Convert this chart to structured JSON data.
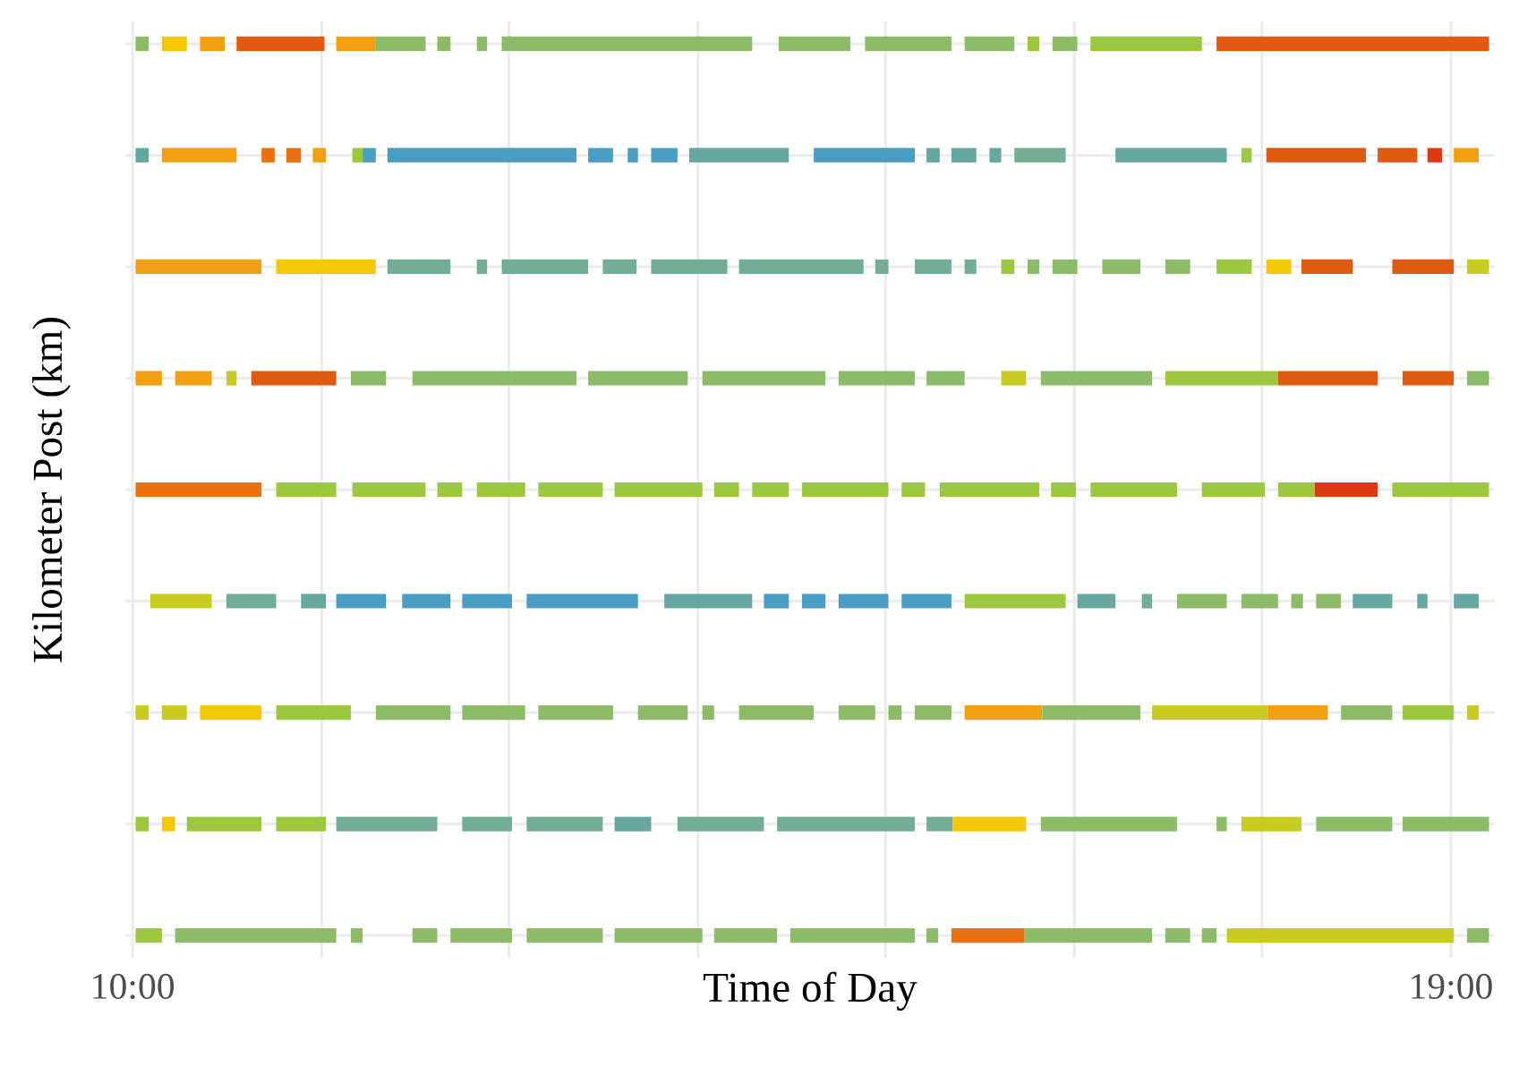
{
  "chart_data": {
    "type": "bar",
    "orientation": "horizontal",
    "xlabel": "Time of Day",
    "ylabel": "Kilometer Post (km)",
    "categories": [
      null,
      null,
      null,
      null,
      null,
      null,
      null,
      null,
      null
    ],
    "xlim": [
      9.95,
      19.3
    ],
    "xticks": [
      {
        "value": 10,
        "label": "10:00"
      },
      {
        "value": 11.29,
        "label": null
      },
      {
        "value": 12.57,
        "label": null
      },
      {
        "value": 13.86,
        "label": null
      },
      {
        "value": 15.14,
        "label": null
      },
      {
        "value": 16.43,
        "label": null
      },
      {
        "value": 17.71,
        "label": null
      },
      {
        "value": 19,
        "label": "19:00"
      }
    ],
    "tick_labels": "x",
    "grid": true,
    "series": [
      {
        "base": [
          10.02,
          10.02,
          10.02,
          10.02,
          10.02,
          10.12,
          10.02,
          10.02,
          10.02
        ],
        "values": [
          0.09,
          0.09,
          0.86,
          0.18,
          0.86,
          0.42,
          0.09,
          0.09,
          0.18
        ],
        "colors": [
          "#8cbc68",
          "#66a8a0",
          "#f0a010",
          "#f0a010",
          "#ea7010",
          "#c8cc20",
          "#c8cc20",
          "#9cc840",
          "#9cc840"
        ]
      },
      {
        "base": [
          10.2,
          10.2,
          10.98,
          10.29,
          10.98,
          10.64,
          10.2,
          10.2,
          10.29
        ],
        "values": [
          0.17,
          0.51,
          0.68,
          0.25,
          0.41,
          0.34,
          0.17,
          0.09,
          1.1
        ],
        "colors": [
          "#f2c800",
          "#f0a010",
          "#f2c800",
          "#f0a010",
          "#9cc840",
          "#72ae94",
          "#c8cc20",
          "#f2c800",
          "#8cbc68"
        ]
      },
      {
        "base": [
          10.46,
          10.88,
          11.74,
          10.64,
          11.5,
          11.15,
          10.46,
          10.37,
          11.49
        ],
        "values": [
          0.17,
          0.09,
          0.43,
          0.07,
          0.5,
          0.17,
          0.42,
          0.51,
          0.08
        ],
        "colors": [
          "#f0a010",
          "#ea7010",
          "#72ae94",
          "#c8cc20",
          "#9cc840",
          "#66a8a0",
          "#f2c800",
          "#9cc840",
          "#8cbc68"
        ]
      },
      {
        "base": [
          10.71,
          11.05,
          12.35,
          10.81,
          12.08,
          11.39,
          10.98,
          10.98,
          11.91
        ],
        "values": [
          0.6,
          0.1,
          0.07,
          0.58,
          0.17,
          0.34,
          0.51,
          0.34,
          0.17
        ],
        "colors": [
          "#e05a10",
          "#ea7010",
          "#72ae94",
          "#e05a10",
          "#9cc840",
          "#4a9ec4",
          "#9cc840",
          "#9cc840",
          "#8cbc68"
        ]
      },
      {
        "base": [
          11.39,
          11.23,
          12.52,
          11.49,
          12.35,
          11.84,
          11.66,
          11.39,
          12.17
        ],
        "values": [
          0.27,
          0.09,
          0.59,
          0.24,
          0.33,
          0.33,
          0.51,
          0.69,
          0.42
        ],
        "colors": [
          "#f0a010",
          "#f0a010",
          "#72ae94",
          "#8cbc68",
          "#9cc840",
          "#4a9ec4",
          "#8cbc68",
          "#72ae94",
          "#8cbc68"
        ]
      },
      {
        "base": [
          11.66,
          11.5,
          13.21,
          11.91,
          12.77,
          12.25,
          12.25,
          12.25,
          12.69
        ],
        "values": [
          0.34,
          0.07,
          0.23,
          1.12,
          0.44,
          0.34,
          0.43,
          0.34,
          0.52
        ],
        "colors": [
          "#8cbc68",
          "#9cc840",
          "#72ae94",
          "#8cbc68",
          "#9cc840",
          "#4a9ec4",
          "#8cbc68",
          "#72ae94",
          "#8cbc68"
        ]
      },
      {
        "base": [
          12.08,
          11.57,
          13.54,
          13.11,
          13.29,
          12.69,
          12.77,
          12.69,
          13.29
        ],
        "values": [
          0.09,
          0.09,
          0.52,
          0.68,
          0.6,
          0.76,
          0.51,
          0.52,
          0.6
        ],
        "colors": [
          "#8cbc68",
          "#4a9ec4",
          "#72ae94",
          "#8cbc68",
          "#9cc840",
          "#4a9ec4",
          "#8cbc68",
          "#72ae94",
          "#8cbc68"
        ]
      },
      {
        "base": [
          12.35,
          11.74,
          14.14,
          13.89,
          13.97,
          13.63,
          13.45,
          13.29,
          13.97
        ],
        "values": [
          0.07,
          1.29,
          0.85,
          0.84,
          0.17,
          0.6,
          0.34,
          0.25,
          0.43
        ],
        "colors": [
          "#8cbc68",
          "#4a9ec4",
          "#72ae94",
          "#8cbc68",
          "#9cc840",
          "#66a8a0",
          "#8cbc68",
          "#66a8a0",
          "#8cbc68"
        ]
      },
      {
        "base": [
          12.52,
          13.11,
          15.07,
          14.82,
          14.23,
          14.31,
          13.89,
          13.72,
          14.49
        ],
        "values": [
          1.71,
          0.17,
          0.09,
          0.52,
          0.25,
          0.17,
          0.08,
          0.59,
          0.85
        ],
        "colors": [
          "#8cbc68",
          "#4a9ec4",
          "#72ae94",
          "#8cbc68",
          "#9cc840",
          "#4a9ec4",
          "#8cbc68",
          "#72ae94",
          "#8cbc68"
        ]
      },
      {
        "base": [
          14.41,
          13.38,
          15.34,
          15.42,
          14.57,
          14.57,
          14.14,
          14.4,
          15.42
        ],
        "values": [
          0.49,
          0.07,
          0.25,
          0.26,
          0.59,
          0.16,
          0.51,
          0.94,
          0.08
        ],
        "colors": [
          "#8cbc68",
          "#4a9ec4",
          "#72ae94",
          "#8cbc68",
          "#9cc840",
          "#4a9ec4",
          "#8cbc68",
          "#72ae94",
          "#8cbc68"
        ]
      },
      {
        "base": [
          15.0,
          13.54,
          15.68,
          15.93,
          15.25,
          14.82,
          14.82,
          15.42,
          15.59
        ],
        "values": [
          0.59,
          0.18,
          0.08,
          0.17,
          0.16,
          0.34,
          0.25,
          0.18,
          0.5
        ],
        "colors": [
          "#8cbc68",
          "#4a9ec4",
          "#72ae94",
          "#c8cc20",
          "#9cc840",
          "#4a9ec4",
          "#8cbc68",
          "#72ae94",
          "#ea7010"
        ]
      },
      {
        "base": [
          15.68,
          13.8,
          15.93,
          16.2,
          15.51,
          15.25,
          15.16,
          15.6,
          16.09
        ],
        "values": [
          0.34,
          0.68,
          0.09,
          0.76,
          0.68,
          0.34,
          0.09,
          0.5,
          0.87
        ],
        "colors": [
          "#8cbc68",
          "#66a8a0",
          "#9cc840",
          "#8cbc68",
          "#9cc840",
          "#4a9ec4",
          "#8cbc68",
          "#f2c800",
          "#8cbc68"
        ]
      },
      {
        "base": [
          16.11,
          14.65,
          16.11,
          17.05,
          16.27,
          15.68,
          15.34,
          16.2,
          17.05
        ],
        "values": [
          0.08,
          0.69,
          0.08,
          0.77,
          0.17,
          0.69,
          0.25,
          0.93,
          0.17
        ],
        "colors": [
          "#9cc840",
          "#4a9ec4",
          "#8cbc68",
          "#9cc840",
          "#9cc840",
          "#9cc840",
          "#8cbc68",
          "#8cbc68",
          "#8cbc68"
        ]
      },
      {
        "base": [
          16.28,
          15.42,
          16.28,
          17.82,
          16.54,
          16.45,
          15.68,
          17.4,
          17.3
        ],
        "values": [
          0.17,
          0.09,
          0.17,
          0.68,
          0.59,
          0.26,
          0.53,
          0.07,
          0.1
        ],
        "colors": [
          "#8cbc68",
          "#66a8a0",
          "#8cbc68",
          "#e05a10",
          "#9cc840",
          "#66a8a0",
          "#f0a010",
          "#8cbc68",
          "#8cbc68"
        ]
      },
      {
        "base": [
          16.54,
          15.59,
          16.62,
          18.67,
          17.3,
          16.89,
          16.21,
          17.57,
          17.47
        ],
        "values": [
          0.76,
          0.17,
          0.26,
          0.35,
          0.43,
          0.07,
          0.67,
          0.41,
          1.55
        ],
        "colors": [
          "#9cc840",
          "#66a8a0",
          "#8cbc68",
          "#e05a10",
          "#9cc840",
          "#72ae94",
          "#8cbc68",
          "#c8cc20",
          "#c8cc20"
        ]
      },
      {
        "base": [
          17.4,
          15.85,
          17.05,
          19.11,
          17.82,
          17.13,
          16.96,
          18.08,
          19.11
        ],
        "values": [
          1.86,
          0.08,
          0.17,
          0.15,
          0.25,
          0.34,
          0.79,
          0.52,
          0.15
        ],
        "colors": [
          "#e05a10",
          "#66a8a0",
          "#8cbc68",
          "#8cbc68",
          "#9cc840",
          "#8cbc68",
          "#c8cc20",
          "#8cbc68",
          "#8cbc68"
        ]
      },
      {
        "base": [
          null,
          16.02,
          17.4,
          null,
          18.07,
          17.57,
          17.75,
          18.67,
          null
        ],
        "values": [
          null,
          0.35,
          0.24,
          null,
          0.43,
          0.25,
          0.41,
          0.59,
          null
        ],
        "colors": [
          null,
          "#72ae94",
          "#9cc840",
          null,
          "#dc3a10",
          "#8cbc68",
          "#f0a010",
          "#8cbc68",
          null
        ]
      },
      {
        "base": [
          null,
          16.71,
          17.74,
          null,
          18.6,
          17.91,
          18.25,
          null,
          null
        ],
        "values": [
          null,
          0.76,
          0.17,
          null,
          0.66,
          0.08,
          0.35,
          null,
          null
        ],
        "colors": [
          null,
          "#66a8a0",
          "#f2c800",
          null,
          "#9cc840",
          "#8cbc68",
          "#8cbc68",
          null,
          null
        ]
      },
      {
        "base": [
          null,
          17.57,
          17.98,
          null,
          null,
          18.08,
          18.67,
          null,
          null
        ],
        "values": [
          null,
          0.07,
          0.35,
          null,
          null,
          0.17,
          0.35,
          null,
          null
        ],
        "colors": [
          null,
          "#9cc840",
          "#e05a10",
          null,
          null,
          "#8cbc68",
          "#9cc840",
          null,
          null
        ]
      },
      {
        "base": [
          null,
          17.74,
          18.6,
          null,
          null,
          18.33,
          19.11,
          null,
          null
        ],
        "values": [
          null,
          0.68,
          0.42,
          null,
          null,
          0.27,
          0.08,
          null,
          null
        ],
        "colors": [
          null,
          "#e05a10",
          "#e05a10",
          null,
          null,
          "#66a8a0",
          "#c8cc20",
          null,
          null
        ]
      },
      {
        "base": [
          null,
          18.5,
          19.11,
          null,
          null,
          18.77,
          null,
          null,
          null
        ],
        "values": [
          null,
          0.27,
          0.15,
          null,
          null,
          0.07,
          null,
          null,
          null
        ],
        "colors": [
          null,
          "#e05a10",
          "#c8cc20",
          null,
          null,
          "#66a8a0",
          null,
          null,
          null
        ]
      },
      {
        "base": [
          null,
          18.84,
          null,
          null,
          null,
          19.02,
          null,
          null,
          null
        ],
        "values": [
          null,
          0.1,
          null,
          null,
          null,
          0.17,
          null,
          null,
          null
        ],
        "colors": [
          null,
          "#dc3a10",
          null,
          null,
          null,
          "#66a8a0",
          null,
          null,
          null
        ]
      },
      {
        "base": [
          null,
          19.02,
          null,
          null,
          null,
          null,
          null,
          null,
          null
        ],
        "values": [
          null,
          0.17,
          null,
          null,
          null,
          null,
          null,
          null,
          null
        ],
        "colors": [
          null,
          "#f0a010",
          null,
          null,
          null,
          null,
          null,
          null,
          null
        ]
      }
    ]
  }
}
